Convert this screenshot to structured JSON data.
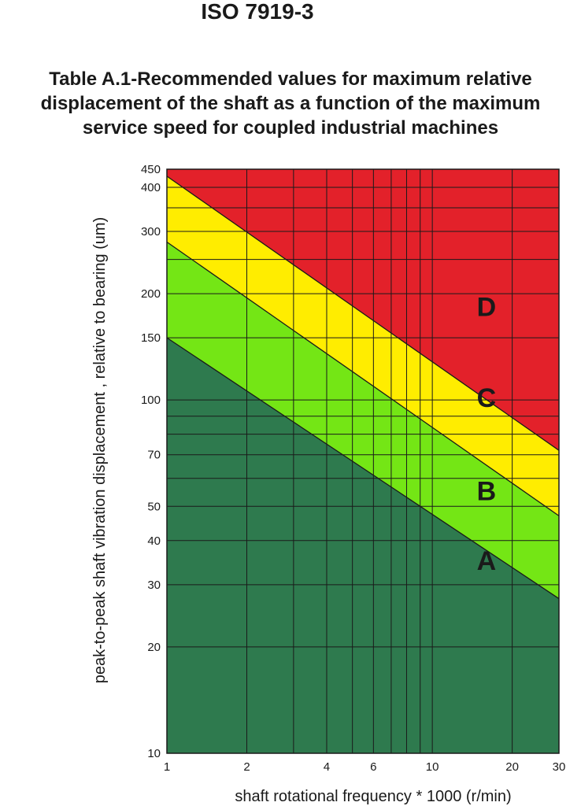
{
  "chart_data": {
    "type": "area",
    "title": "ISO 7919-3",
    "subtitle_lines": [
      "Table A.1-Recommended values for maximum relative",
      "displacement of the shaft as a function of the maximum",
      "service speed for coupled industrial machines"
    ],
    "xlabel": "shaft rotational frequency * 1000 (r/min)",
    "ylabel": "peak-to-peak shaft vibration displacement , relative to bearing (um)",
    "x_scale": "log",
    "y_scale": "log",
    "xlim": [
      1,
      30
    ],
    "ylim": [
      10,
      450
    ],
    "x_tick_labels": [
      "1",
      "2",
      "4",
      "6",
      "10",
      "20",
      "30"
    ],
    "x_tick_values": [
      1,
      2,
      4,
      6,
      10,
      20,
      30
    ],
    "y_tick_labels": [
      "10",
      "20",
      "30",
      "40",
      "50",
      "70",
      "100",
      "150",
      "200",
      "300",
      "400",
      "450"
    ],
    "y_tick_values": [
      10,
      20,
      30,
      40,
      50,
      70,
      100,
      150,
      200,
      300,
      400,
      450
    ],
    "x_grid": [
      1,
      2,
      3,
      4,
      5,
      6,
      7,
      8,
      9,
      10,
      20,
      30
    ],
    "y_grid": [
      10,
      20,
      30,
      40,
      50,
      60,
      70,
      80,
      90,
      100,
      150,
      200,
      250,
      300,
      350,
      400,
      450
    ],
    "grid": true,
    "boundaries": [
      {
        "name": "A/B",
        "x": [
          1,
          30
        ],
        "y": [
          150,
          27.4
        ]
      },
      {
        "name": "B/C",
        "x": [
          1,
          30
        ],
        "y": [
          280,
          47
        ]
      },
      {
        "name": "C/D",
        "x": [
          1,
          30
        ],
        "y": [
          430,
          72
        ]
      }
    ],
    "zones": [
      {
        "label": "A",
        "color": "#2e7a4e",
        "label_at": [
          16,
          35
        ]
      },
      {
        "label": "B",
        "color": "#74e615",
        "label_at": [
          16,
          55
        ]
      },
      {
        "label": "C",
        "color": "#ffed00",
        "label_at": [
          16,
          101
        ]
      },
      {
        "label": "D",
        "color": "#e3212a",
        "label_at": [
          16,
          183
        ]
      }
    ]
  }
}
